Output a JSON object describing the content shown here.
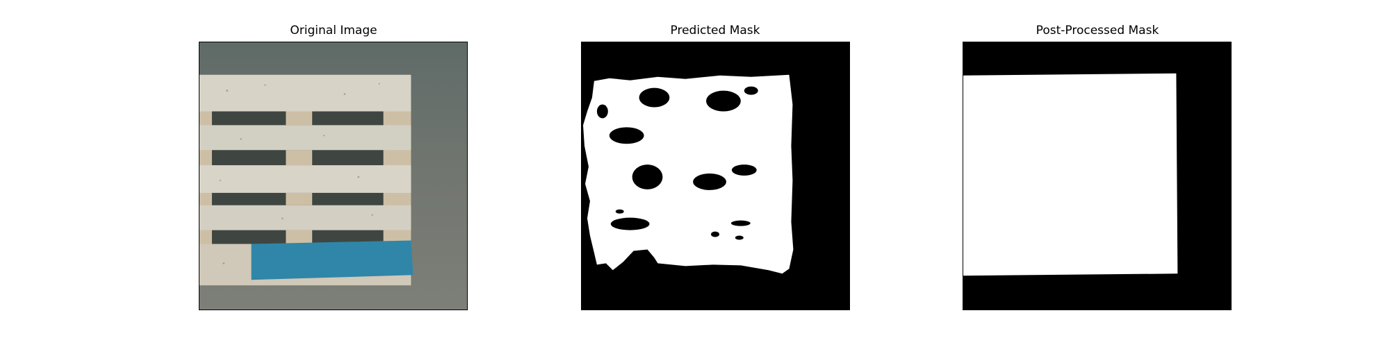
{
  "figure": {
    "panels": [
      {
        "title": "Original Image"
      },
      {
        "title": "Predicted Mask"
      },
      {
        "title": "Post-Processed Mask"
      }
    ]
  },
  "colors": {
    "background": "#ffffff",
    "mask_fg": "#ffffff",
    "mask_bg": "#000000",
    "floor": "#6b706a",
    "wood": "#d8d2c4",
    "blue_board": "#2f86a8"
  }
}
